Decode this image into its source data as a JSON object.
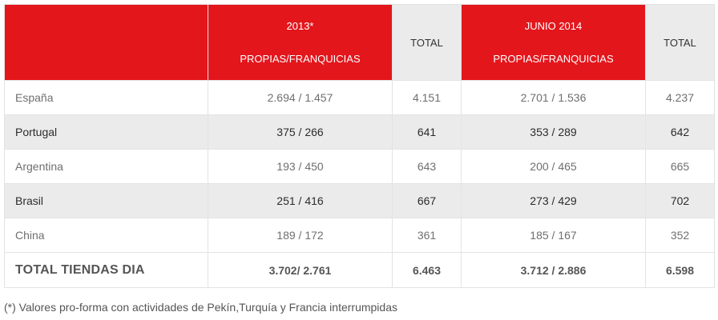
{
  "header": {
    "col1": {
      "line1": "2013*",
      "line2": "PROPIAS/FRANQUICIAS"
    },
    "col2": "TOTAL",
    "col3": {
      "line1": "JUNIO 2014",
      "line2": "PROPIAS/FRANQUICIAS"
    },
    "col4": "TOTAL"
  },
  "rows": [
    {
      "country": "España",
      "own_2013": "2.694 / 1.457",
      "total_2013": "4.151",
      "own_2014": "2.701 / 1.536",
      "total_2014": "4.237"
    },
    {
      "country": "Portugal",
      "own_2013": "375 / 266",
      "total_2013": "641",
      "own_2014": "353 / 289",
      "total_2014": "642"
    },
    {
      "country": "Argentina",
      "own_2013": "193 / 450",
      "total_2013": "643",
      "own_2014": "200 / 465",
      "total_2014": "665"
    },
    {
      "country": "Brasil",
      "own_2013": "251 / 416",
      "total_2013": "667",
      "own_2014": "273 / 429",
      "total_2014": "702"
    },
    {
      "country": "China",
      "own_2013": "189 / 172",
      "total_2013": "361",
      "own_2014": "185 / 167",
      "total_2014": "352"
    }
  ],
  "total": {
    "country": "TOTAL TIENDAS DIA",
    "own_2013": "3.702/ 2.761",
    "total_2013": "6.463",
    "own_2014": "3.712 / 2.886",
    "total_2014": "6.598"
  },
  "footnote": "(*) Valores pro-forma con actividades de Pekín,Turquía y Francia interrumpidas",
  "colors": {
    "accent_red": "#e3161c",
    "row_grey": "#ebebeb"
  }
}
